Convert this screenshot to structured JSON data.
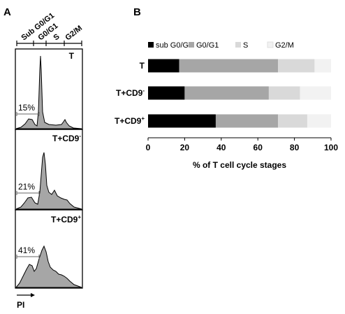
{
  "panel_a": {
    "letter": "A",
    "header_labels": [
      "Sub G0/G1",
      "G0/G1",
      "S",
      "G2/M"
    ],
    "xlabel": "PI",
    "histograms": [
      {
        "label": "T",
        "superscript": "",
        "percent": "15%"
      },
      {
        "label": "T+CD9",
        "superscript": "-",
        "percent": "21%"
      },
      {
        "label": "T+CD9",
        "superscript": "+",
        "percent": "41%"
      }
    ],
    "fill_color": "#a6a6a6"
  },
  "chart_data": {
    "type": "bar",
    "orientation": "horizontal",
    "stacked": true,
    "panel_letter": "B",
    "categories": [
      {
        "label": "T",
        "superscript": ""
      },
      {
        "label": "T+CD9",
        "superscript": "-"
      },
      {
        "label": "T+CD9",
        "superscript": "+"
      }
    ],
    "series": [
      {
        "name": "sub G0/G1",
        "color": "#000000",
        "values": [
          17,
          20,
          37
        ]
      },
      {
        "name": "G0/G1",
        "color": "#a6a6a6",
        "values": [
          54,
          46,
          34
        ]
      },
      {
        "name": "S",
        "color": "#d9d9d9",
        "values": [
          20,
          17,
          16
        ]
      },
      {
        "name": "G2/M",
        "color": "#f2f2f2",
        "values": [
          9,
          17,
          13
        ]
      }
    ],
    "xlim": [
      0,
      100
    ],
    "xticks": [
      0,
      20,
      40,
      60,
      80,
      100
    ],
    "xlabel": "% of T cell cycle stages",
    "legend_position": "top",
    "grid": false
  }
}
